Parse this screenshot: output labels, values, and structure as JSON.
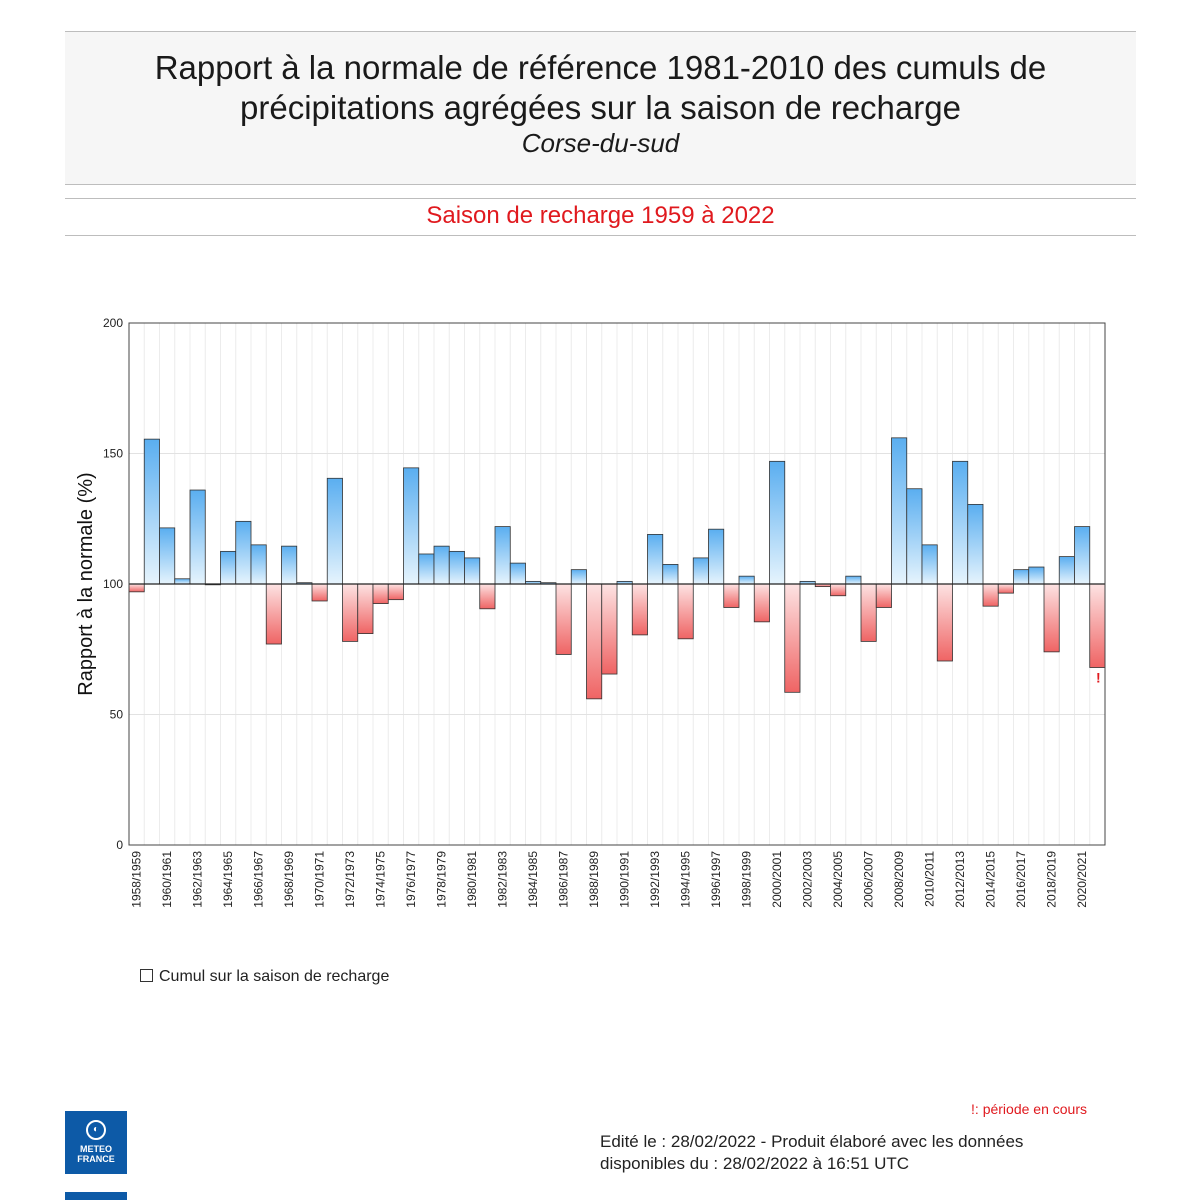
{
  "header": {
    "title_line1": "Rapport à la normale de référence 1981-2010 des cumuls de",
    "title_line2": "précipitations agrégées sur la saison de recharge",
    "region": "Corse-du-sud"
  },
  "season_label": "Saison de recharge 1959 à 2022",
  "legend_label": "Cumul sur la saison de recharge",
  "footnote": "!: période en cours",
  "edited_line1": "Edité le : 28/02/2022 - Produit élaboré avec les données",
  "edited_line2": "disponibles du : 28/02/2022 à 16:51 UTC",
  "logo": {
    "line1": "METEO",
    "line2": "FRANCE"
  },
  "colors": {
    "positive": "#5aaef0",
    "negative": "#ef6464",
    "title_red": "#e0191e"
  },
  "chart_data": {
    "type": "bar",
    "title": "Saison de recharge 1959 à 2022",
    "xlabel": "",
    "ylabel": "Rapport à la normale (%)",
    "ylim": [
      0,
      200
    ],
    "yticks": [
      0,
      50,
      100,
      150,
      200
    ],
    "baseline": 100,
    "grid": true,
    "in_progress_marker": "!",
    "categories": [
      "1958/1959",
      "1959/1960",
      "1960/1961",
      "1961/1962",
      "1962/1963",
      "1963/1964",
      "1964/1965",
      "1965/1966",
      "1966/1967",
      "1967/1968",
      "1968/1969",
      "1969/1970",
      "1970/1971",
      "1971/1972",
      "1972/1973",
      "1973/1974",
      "1974/1975",
      "1975/1976",
      "1976/1977",
      "1977/1978",
      "1978/1979",
      "1979/1980",
      "1980/1981",
      "1981/1982",
      "1982/1983",
      "1983/1984",
      "1984/1985",
      "1985/1986",
      "1986/1987",
      "1987/1988",
      "1988/1989",
      "1989/1990",
      "1990/1991",
      "1991/1992",
      "1992/1993",
      "1993/1994",
      "1994/1995",
      "1995/1996",
      "1996/1997",
      "1997/1998",
      "1998/1999",
      "1999/2000",
      "2000/2001",
      "2001/2002",
      "2002/2003",
      "2003/2004",
      "2004/2005",
      "2005/2006",
      "2006/2007",
      "2007/2008",
      "2008/2009",
      "2009/2010",
      "2010/2011",
      "2011/2012",
      "2012/2013",
      "2013/2014",
      "2014/2015",
      "2015/2016",
      "2016/2017",
      "2017/2018",
      "2018/2019",
      "2019/2020",
      "2020/2021",
      "2021/2022"
    ],
    "tick_labels": [
      "1958/1959",
      "1960/1961",
      "1962/1963",
      "1964/1965",
      "1966/1967",
      "1968/1969",
      "1970/1971",
      "1972/1973",
      "1974/1975",
      "1976/1977",
      "1978/1979",
      "1980/1981",
      "1982/1983",
      "1984/1985",
      "1986/1987",
      "1988/1989",
      "1990/1991",
      "1992/1993",
      "1994/1995",
      "1996/1997",
      "1998/1999",
      "2000/2001",
      "2002/2003",
      "2004/2005",
      "2006/2007",
      "2008/2009",
      "2010/2011",
      "2012/2013",
      "2014/2015",
      "2016/2017",
      "2018/2019",
      "2020/2021"
    ],
    "values": [
      97,
      155.5,
      121.5,
      102,
      136,
      100,
      112.5,
      124,
      115,
      77,
      114.5,
      100.5,
      93.5,
      140.5,
      78,
      81,
      92.5,
      94,
      144.5,
      111.5,
      114.5,
      112.5,
      110,
      90.5,
      122,
      108,
      101,
      100.5,
      73,
      105.5,
      56,
      65.5,
      101,
      80.5,
      119,
      107.5,
      79,
      110,
      121,
      91,
      103,
      85.5,
      147,
      58.5,
      101,
      99,
      95.5,
      103,
      78,
      91,
      156,
      136.5,
      115,
      70.5,
      147,
      130.5,
      91.5,
      96.5,
      105.5,
      106.5,
      74,
      110.5,
      122,
      68
    ]
  }
}
